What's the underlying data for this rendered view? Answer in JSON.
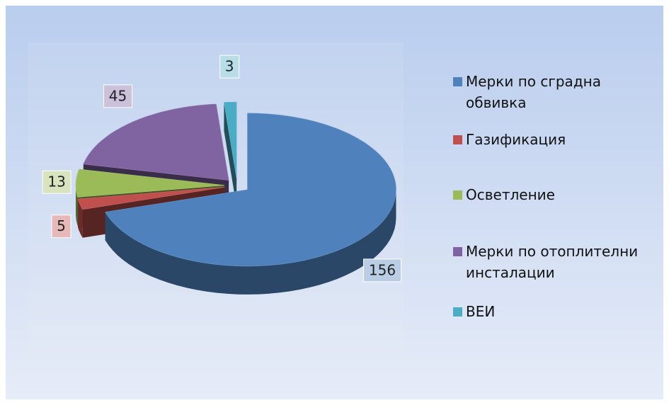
{
  "chart_data": {
    "type": "pie3d",
    "categories": [
      "Мерки по сградна обвивка",
      "Газификация",
      "Осветление",
      "Мерки по отоплителни инсталации",
      "ВЕИ"
    ],
    "values": [
      156,
      5,
      13,
      45,
      3
    ],
    "colors": [
      "#4f81bd",
      "#c0504d",
      "#9bbb59",
      "#8064a2",
      "#4bacc6"
    ],
    "legend": "right"
  }
}
